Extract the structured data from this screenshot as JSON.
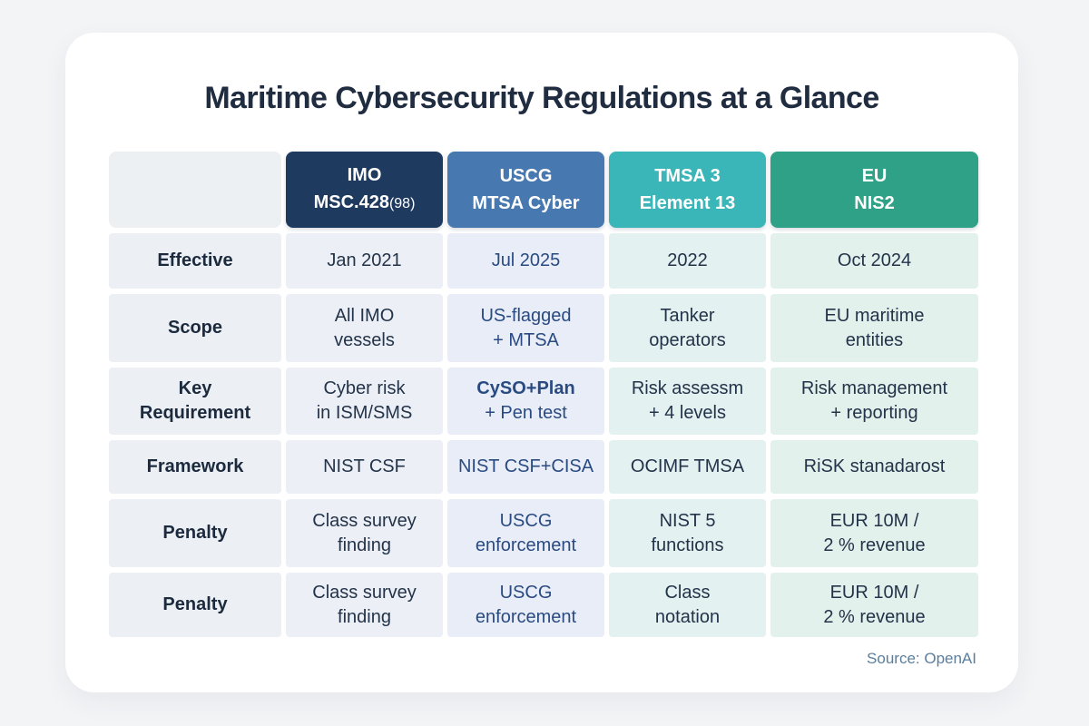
{
  "title": "Maritime Cybersecurity Regulations at a Glance",
  "source": "Source: OpenAI",
  "colors": {
    "page_background": "#f3f4f6",
    "card_background": "#ffffff",
    "title_text": "#202c40",
    "label_cell_background": "#ecf0f5",
    "source_text": "#5b7e9d"
  },
  "table": {
    "row_labels": [
      "Effective",
      "Scope",
      "Key\nRequirement",
      "Framework",
      "Penalty",
      "Penalty"
    ],
    "columns": [
      {
        "id": "imo",
        "header": {
          "line1": "IMO",
          "line2": "MSC.428",
          "suffix": "(98)"
        },
        "colors": {
          "header_bg": "#1e3a5f",
          "cell_bg": "#ecf0f6",
          "text": "#233349"
        },
        "cells": [
          "Jan 2021",
          "All IMO\nvessels",
          "Cyber risk\nin ISM/SMS",
          "NIST CSF",
          "Class survey\nfinding",
          "Class survey\nfinding"
        ]
      },
      {
        "id": "uscg",
        "header": {
          "line1": "USCG",
          "line2": "MTSA Cyber",
          "suffix": ""
        },
        "colors": {
          "header_bg": "#4779b0",
          "cell_bg": "#e8edf7",
          "text": "#2a4b82"
        },
        "cells": [
          "Jul 2025",
          "US-flagged\n+ MTSA",
          {
            "bold": "CySO+Plan",
            "rest": "+ Pen test"
          },
          "NIST CSF+CISA",
          "USCG\nenforcement",
          "USCG\nenforcement"
        ]
      },
      {
        "id": "tmsa",
        "header": {
          "line1": "TMSA 3",
          "line2": "Element 13",
          "suffix": ""
        },
        "colors": {
          "header_bg": "#3ab6b8",
          "cell_bg": "#e3f1f0",
          "text": "#233349"
        },
        "cells": [
          "2022",
          "Tanker\noperators",
          "Risk assessm\n+ 4 levels",
          "OCIMF TMSA",
          "NIST 5\nfunctions",
          "Class\nnotation"
        ]
      },
      {
        "id": "eu",
        "header": {
          "line1": "EU",
          "line2": "NIS2",
          "suffix": ""
        },
        "colors": {
          "header_bg": "#2fa186",
          "cell_bg": "#e3f1ec",
          "text": "#233349"
        },
        "cells": [
          "Oct 2024",
          "EU maritime\nentities",
          "Risk management\n+ reporting",
          "RiSK stanadarost",
          "EUR 10M /\n2 % revenue",
          "EUR 10M /\n2 % revenue"
        ]
      }
    ]
  },
  "chart_data": {
    "type": "table",
    "title": "Maritime Cybersecurity Regulations at a Glance",
    "column_headers": [
      "",
      "IMO MSC.428(98)",
      "USCG MTSA Cyber",
      "TMSA 3 Element 13",
      "EU NIS2"
    ],
    "rows": [
      [
        "Effective",
        "Jan 2021",
        "Jul 2025",
        "2022",
        "Oct 2024"
      ],
      [
        "Scope",
        "All IMO vessels",
        "US-flagged + MTSA",
        "Tanker operators",
        "EU maritime entities"
      ],
      [
        "Key Requirement",
        "Cyber risk in ISM/SMS",
        "CySO+Plan + Pen test",
        "Risk assessm + 4 levels",
        "Risk management + reporting"
      ],
      [
        "Framework",
        "NIST CSF",
        "NIST CSF+CISA",
        "OCIMF TMSA",
        "RiSK stanadarost"
      ],
      [
        "Penalty",
        "Class survey finding",
        "USCG enforcement",
        "NIST 5 functions",
        "EUR 10M / 2 % revenue"
      ],
      [
        "Penalty",
        "Class survey finding",
        "USCG enforcement",
        "Class notation",
        "EUR 10M / 2 % revenue"
      ]
    ],
    "source": "Source: OpenAI",
    "legend_position": "none",
    "grid": false
  }
}
